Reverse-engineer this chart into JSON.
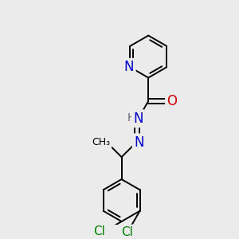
{
  "bg_color": "#ebebeb",
  "atom_colors": {
    "C": "#000000",
    "N": "#0000cc",
    "O": "#cc0000",
    "Cl": "#008000",
    "H": "#606060"
  },
  "bond_color": "#000000",
  "bond_width": 1.4,
  "dbo": 0.12,
  "font_size_atom": 11
}
